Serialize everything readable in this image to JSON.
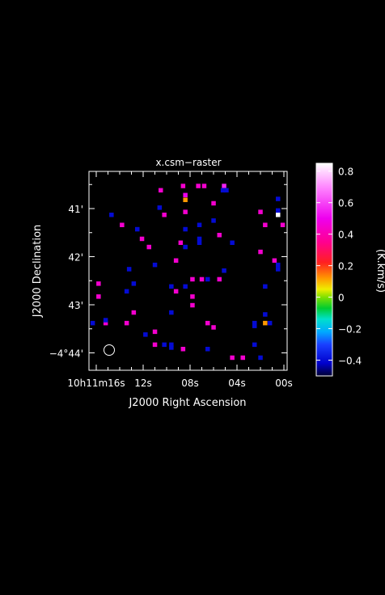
{
  "chart_data": {
    "type": "heatmap",
    "title": "x.csm−raster",
    "xlabel": "J2000 Right Ascension",
    "ylabel": "J2000 Declination",
    "colorbar_label": "(K.km/s)",
    "ra_ticks": [
      {
        "sec": 16,
        "label": "10h11m16s"
      },
      {
        "sec": 12,
        "label": "12s"
      },
      {
        "sec": 8,
        "label": "08s"
      },
      {
        "sec": 4,
        "label": "04s"
      },
      {
        "sec": 0,
        "label": "00s"
      }
    ],
    "dec_ticks": [
      {
        "min": 41,
        "label": "41'"
      },
      {
        "min": 42,
        "label": "42'"
      },
      {
        "min": 43,
        "label": "43'"
      },
      {
        "min": 44,
        "label": "−4°44'"
      }
    ],
    "colorbar": {
      "vmin": -0.5,
      "vmax": 0.85,
      "ticks": [
        -0.4,
        -0.2,
        0,
        0.2,
        0.4,
        0.6,
        0.8
      ],
      "tick_labels": [
        "−0.4",
        "−0.2",
        "0",
        "0.2",
        "0.4",
        "0.6",
        "0.8"
      ],
      "stops": [
        {
          "v": -0.5,
          "c": "#000030"
        },
        {
          "v": -0.42,
          "c": "#0000cc"
        },
        {
          "v": -0.3,
          "c": "#1a40ff"
        },
        {
          "v": -0.22,
          "c": "#00aaff"
        },
        {
          "v": -0.14,
          "c": "#00e0cc"
        },
        {
          "v": -0.07,
          "c": "#00cc30"
        },
        {
          "v": 0.0,
          "c": "#80e000"
        },
        {
          "v": 0.05,
          "c": "#eeee00"
        },
        {
          "v": 0.12,
          "c": "#ff9900"
        },
        {
          "v": 0.22,
          "c": "#ff2020"
        },
        {
          "v": 0.35,
          "c": "#ff0090"
        },
        {
          "v": 0.5,
          "c": "#ee00ee"
        },
        {
          "v": 0.7,
          "c": "#ff88ff"
        },
        {
          "v": 0.85,
          "c": "#ffffff"
        }
      ]
    },
    "beam": "circle, lower-left",
    "pixels": [
      {
        "ra": 14.7,
        "dec": 41.13,
        "v": -0.4
      },
      {
        "ra": 13.8,
        "dec": 41.34,
        "v": 0.45
      },
      {
        "ra": 12.5,
        "dec": 41.43,
        "v": -0.4
      },
      {
        "ra": 12.1,
        "dec": 41.63,
        "v": 0.45
      },
      {
        "ra": 10.5,
        "dec": 40.62,
        "v": 0.45
      },
      {
        "ra": 10.6,
        "dec": 40.98,
        "v": -0.4
      },
      {
        "ra": 10.2,
        "dec": 41.13,
        "v": 0.45
      },
      {
        "ra": 8.6,
        "dec": 40.53,
        "v": 0.45
      },
      {
        "ra": 8.4,
        "dec": 40.72,
        "v": 0.5
      },
      {
        "ra": 8.4,
        "dec": 40.82,
        "v": 0.12
      },
      {
        "ra": 8.4,
        "dec": 41.07,
        "v": 0.45
      },
      {
        "ra": 8.4,
        "dec": 41.43,
        "v": -0.4
      },
      {
        "ra": 7.3,
        "dec": 40.53,
        "v": 0.45
      },
      {
        "ra": 6.8,
        "dec": 40.53,
        "v": 0.45
      },
      {
        "ra": 7.2,
        "dec": 41.34,
        "v": -0.4
      },
      {
        "ra": 7.2,
        "dec": 41.63,
        "v": -0.4
      },
      {
        "ra": 6.0,
        "dec": 40.89,
        "v": 0.45
      },
      {
        "ra": 6.0,
        "dec": 41.25,
        "v": -0.4
      },
      {
        "ra": 5.1,
        "dec": 40.53,
        "v": 0.55
      },
      {
        "ra": 5.2,
        "dec": 40.62,
        "v": -0.4
      },
      {
        "ra": 5.5,
        "dec": 41.55,
        "v": 0.45
      },
      {
        "ra": 4.9,
        "dec": 40.62,
        "v": -0.4
      },
      {
        "ra": 2.0,
        "dec": 41.07,
        "v": 0.45
      },
      {
        "ra": 1.6,
        "dec": 41.34,
        "v": 0.45
      },
      {
        "ra": 0.5,
        "dec": 40.8,
        "v": -0.4
      },
      {
        "ra": 0.5,
        "dec": 41.13,
        "v": 0.85
      },
      {
        "ra": 0.5,
        "dec": 41.04,
        "v": -0.4
      },
      {
        "ra": 0.1,
        "dec": 41.34,
        "v": 0.45
      },
      {
        "ra": 11.5,
        "dec": 41.8,
        "v": 0.45
      },
      {
        "ra": 11.0,
        "dec": 42.17,
        "v": -0.4
      },
      {
        "ra": 9.2,
        "dec": 42.08,
        "v": 0.45
      },
      {
        "ra": 8.8,
        "dec": 41.71,
        "v": 0.45
      },
      {
        "ra": 8.4,
        "dec": 41.8,
        "v": -0.4
      },
      {
        "ra": 7.2,
        "dec": 41.71,
        "v": -0.4
      },
      {
        "ra": 4.4,
        "dec": 41.71,
        "v": -0.4
      },
      {
        "ra": 2.0,
        "dec": 41.9,
        "v": 0.45
      },
      {
        "ra": 0.8,
        "dec": 42.08,
        "v": 0.45
      },
      {
        "ra": 0.5,
        "dec": 42.17,
        "v": -0.4
      },
      {
        "ra": 0.5,
        "dec": 42.26,
        "v": -0.4
      },
      {
        "ra": 13.2,
        "dec": 42.26,
        "v": -0.4
      },
      {
        "ra": 12.8,
        "dec": 42.56,
        "v": -0.4
      },
      {
        "ra": 13.4,
        "dec": 42.72,
        "v": -0.4
      },
      {
        "ra": 15.8,
        "dec": 42.56,
        "v": 0.45
      },
      {
        "ra": 15.8,
        "dec": 42.83,
        "v": 0.45
      },
      {
        "ra": 8.4,
        "dec": 42.62,
        "v": -0.4
      },
      {
        "ra": 9.2,
        "dec": 42.72,
        "v": 0.45
      },
      {
        "ra": 9.6,
        "dec": 42.62,
        "v": -0.4
      },
      {
        "ra": 7.8,
        "dec": 42.47,
        "v": 0.45
      },
      {
        "ra": 7.0,
        "dec": 42.47,
        "v": 0.45
      },
      {
        "ra": 6.5,
        "dec": 42.47,
        "v": -0.4
      },
      {
        "ra": 5.5,
        "dec": 42.47,
        "v": 0.45
      },
      {
        "ra": 5.1,
        "dec": 42.29,
        "v": -0.4
      },
      {
        "ra": 1.6,
        "dec": 42.62,
        "v": -0.4
      },
      {
        "ra": 7.8,
        "dec": 42.83,
        "v": 0.45
      },
      {
        "ra": 7.8,
        "dec": 43.01,
        "v": 0.45
      },
      {
        "ra": 9.6,
        "dec": 43.16,
        "v": -0.4
      },
      {
        "ra": 12.8,
        "dec": 43.16,
        "v": 0.45
      },
      {
        "ra": 16.3,
        "dec": 43.38,
        "v": -0.4
      },
      {
        "ra": 15.2,
        "dec": 43.38,
        "v": 0.45
      },
      {
        "ra": 15.2,
        "dec": 43.32,
        "v": -0.4
      },
      {
        "ra": 13.4,
        "dec": 43.38,
        "v": 0.45
      },
      {
        "ra": 6.5,
        "dec": 43.38,
        "v": 0.45
      },
      {
        "ra": 6.0,
        "dec": 43.47,
        "v": 0.45
      },
      {
        "ra": 2.5,
        "dec": 43.38,
        "v": -0.4
      },
      {
        "ra": 2.5,
        "dec": 43.44,
        "v": -0.4
      },
      {
        "ra": 1.6,
        "dec": 43.38,
        "v": 0.12
      },
      {
        "ra": 1.6,
        "dec": 43.2,
        "v": -0.4
      },
      {
        "ra": 1.2,
        "dec": 43.38,
        "v": -0.4
      },
      {
        "ra": 11.8,
        "dec": 43.62,
        "v": -0.4
      },
      {
        "ra": 11.0,
        "dec": 43.56,
        "v": 0.45
      },
      {
        "ra": 11.0,
        "dec": 43.83,
        "v": 0.45
      },
      {
        "ra": 10.2,
        "dec": 43.83,
        "v": -0.4
      },
      {
        "ra": 9.6,
        "dec": 43.83,
        "v": -0.4
      },
      {
        "ra": 9.6,
        "dec": 43.89,
        "v": -0.4
      },
      {
        "ra": 8.6,
        "dec": 43.92,
        "v": 0.45
      },
      {
        "ra": 6.5,
        "dec": 43.92,
        "v": -0.4
      },
      {
        "ra": 4.4,
        "dec": 44.1,
        "v": 0.45
      },
      {
        "ra": 3.5,
        "dec": 44.1,
        "v": 0.45
      },
      {
        "ra": 2.5,
        "dec": 43.83,
        "v": -0.4
      },
      {
        "ra": 2.0,
        "dec": 44.1,
        "v": -0.4
      }
    ]
  }
}
